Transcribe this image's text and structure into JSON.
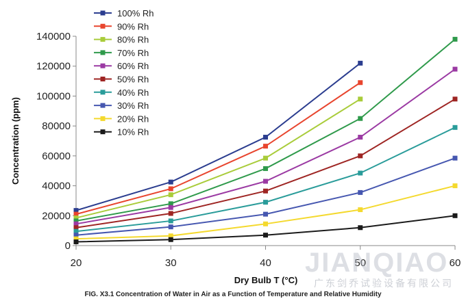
{
  "chart_data": {
    "type": "line",
    "title": "",
    "caption": "FIG. X3.1 Concentration of Water in Air as a Function of Temperature and Relative Humidity",
    "xlabel": "Dry Bulb T (°C)",
    "ylabel": "Concentration (ppm)",
    "xlim": [
      20,
      60
    ],
    "ylim": [
      0,
      140000
    ],
    "xticks": [
      20,
      30,
      40,
      50,
      60
    ],
    "yticks": [
      0,
      20000,
      40000,
      60000,
      80000,
      100000,
      120000,
      140000
    ],
    "legend_position": "top-left",
    "grid": false,
    "x": [
      20,
      30,
      40,
      50,
      60
    ],
    "series": [
      {
        "name": "100% Rh",
        "color": "#2b3d8f",
        "values": [
          23500,
          42500,
          72500,
          122000,
          null
        ]
      },
      {
        "name": "90% Rh",
        "color": "#e8452e",
        "values": [
          21000,
          38000,
          66500,
          109000,
          null
        ]
      },
      {
        "name": "80% Rh",
        "color": "#a9cc3a",
        "values": [
          18500,
          34000,
          58500,
          98000,
          null
        ]
      },
      {
        "name": "70% Rh",
        "color": "#2f9a4b",
        "values": [
          16500,
          28000,
          51500,
          85000,
          138000
        ]
      },
      {
        "name": "60% Rh",
        "color": "#9b3aa3",
        "values": [
          14500,
          25500,
          43000,
          72500,
          118000
        ]
      },
      {
        "name": "50% Rh",
        "color": "#9e2523",
        "values": [
          12000,
          21500,
          36500,
          60000,
          98000
        ]
      },
      {
        "name": "40% Rh",
        "color": "#2a9c9a",
        "values": [
          9500,
          16500,
          29000,
          48500,
          79000
        ]
      },
      {
        "name": "30% Rh",
        "color": "#4657b0",
        "values": [
          7000,
          12500,
          21000,
          35500,
          58500
        ]
      },
      {
        "name": "20% Rh",
        "color": "#f4d92e",
        "values": [
          4500,
          6500,
          14500,
          24000,
          40000
        ]
      },
      {
        "name": "10% Rh",
        "color": "#1a1a1a",
        "values": [
          2500,
          4000,
          7000,
          12000,
          20000
        ]
      }
    ]
  },
  "watermark": {
    "brand": "JIANQIAO",
    "company": "广东剑乔试验设备有限公司"
  }
}
